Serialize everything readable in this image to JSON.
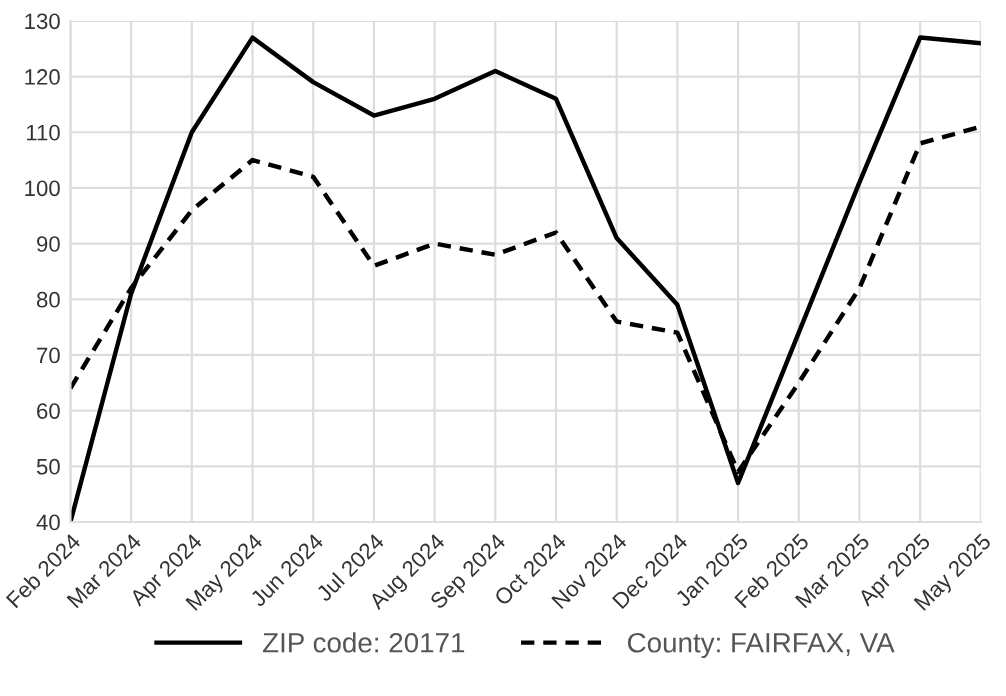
{
  "chart_data": {
    "type": "line",
    "categories": [
      "Feb 2024",
      "Mar 2024",
      "Apr 2024",
      "May 2024",
      "Jun 2024",
      "Jul 2024",
      "Aug 2024",
      "Sep 2024",
      "Oct 2024",
      "Nov 2024",
      "Dec 2024",
      "Jan 2025",
      "Feb 2025",
      "Mar 2025",
      "Apr 2025",
      "May 2025"
    ],
    "series": [
      {
        "name": "ZIP code: 20171",
        "color": "#000000",
        "line_style": "solid",
        "values": [
          40,
          81,
          110,
          127,
          119,
          113,
          116,
          121,
          116,
          91,
          79,
          47,
          74,
          101,
          127,
          126
        ]
      },
      {
        "name": "County: FAIRFAX, VA",
        "color": "#000000",
        "line_style": "dashed",
        "values": [
          64,
          82,
          96,
          105,
          102,
          86,
          90,
          88,
          92,
          76,
          74,
          49,
          65,
          82,
          108,
          111
        ]
      }
    ],
    "ylim": [
      40,
      130
    ],
    "yticks": [
      40,
      50,
      60,
      70,
      80,
      90,
      100,
      110,
      120,
      130
    ],
    "grid": true,
    "legend": "bottom",
    "marker": "none"
  }
}
